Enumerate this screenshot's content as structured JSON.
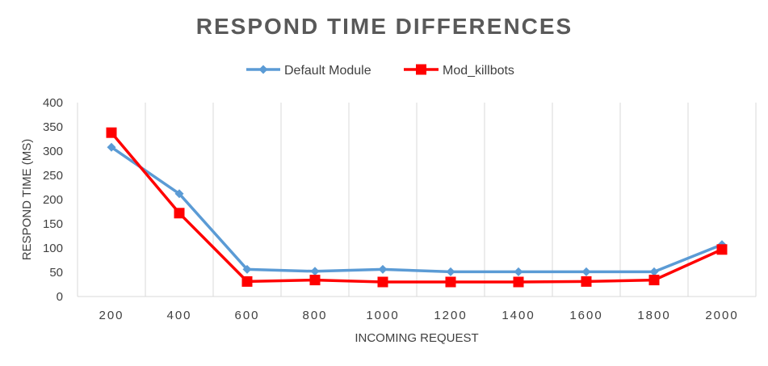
{
  "chart_data": {
    "type": "line",
    "title": "RESPOND TIME DIFFERENCES",
    "xlabel": "INCOMING REQUEST",
    "ylabel": "RESPOND TIME (MS)",
    "categories": [
      "200",
      "400",
      "600",
      "800",
      "1000",
      "1200",
      "1400",
      "1600",
      "1800",
      "2000"
    ],
    "ylim": [
      0,
      400
    ],
    "yticks": [
      "0",
      "50",
      "100",
      "150",
      "200",
      "250",
      "300",
      "350",
      "400"
    ],
    "grid": "vertical",
    "legend_position": "top",
    "series": [
      {
        "name": "Default Module",
        "color": "#5b9bd5",
        "marker": "diamond",
        "values": [
          308,
          212,
          56,
          52,
          56,
          51,
          51,
          51,
          51,
          107
        ]
      },
      {
        "name": "Mod_killbots",
        "color": "#ff0000",
        "marker": "square",
        "values": [
          338,
          172,
          31,
          34,
          30,
          30,
          30,
          31,
          34,
          97
        ]
      }
    ]
  }
}
